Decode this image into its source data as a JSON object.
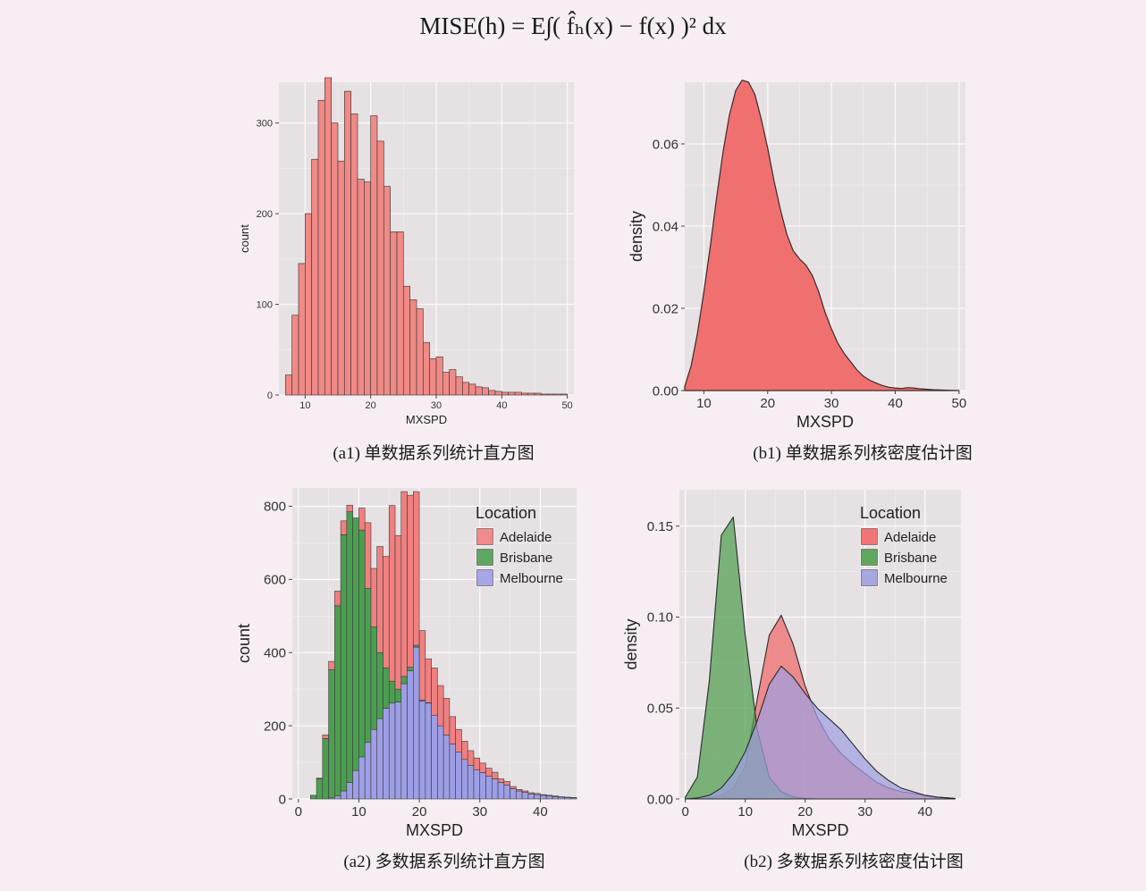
{
  "formula": "MISE(h) = E∫( f̂ₕ(x) − f(x) )² dx",
  "chart_data": [
    {
      "id": "a1",
      "type": "bar",
      "caption": "(a1) 单数据系列统计直方图",
      "xlabel": "MXSPD",
      "ylabel": "count",
      "xlim": [
        6,
        51
      ],
      "ylim": [
        0,
        345
      ],
      "xticks": [
        10,
        20,
        30,
        40,
        50
      ],
      "yticks": [
        0,
        100,
        200,
        300
      ],
      "bin_start": 7,
      "bin_width": 1,
      "colors": {
        "fill": "#f08a86",
        "stroke": "#4a3c3c"
      },
      "values": [
        22,
        88,
        145,
        200,
        260,
        325,
        350,
        300,
        258,
        335,
        310,
        238,
        235,
        308,
        280,
        230,
        180,
        180,
        120,
        105,
        95,
        58,
        40,
        42,
        25,
        28,
        20,
        14,
        12,
        9,
        8,
        5,
        4,
        3,
        3,
        3,
        2,
        2,
        2,
        1,
        1,
        1,
        1
      ]
    },
    {
      "id": "b1",
      "type": "area",
      "caption": "(b1) 单数据系列核密度估计图",
      "xlabel": "MXSPD",
      "ylabel": "density",
      "xlim": [
        7,
        51
      ],
      "ylim": [
        0,
        0.075
      ],
      "xticks": [
        10,
        20,
        30,
        40,
        50
      ],
      "yticks": [
        0,
        0.02,
        0.04,
        0.06
      ],
      "ytick_labels": [
        "0.00",
        "0.02",
        "0.04",
        "0.06"
      ],
      "colors": {
        "fill": "#f07070",
        "stroke": "#3a2a2a"
      },
      "x": [
        7,
        8,
        9,
        10,
        11,
        12,
        13,
        14,
        15,
        16,
        17,
        18,
        19,
        20,
        21,
        22,
        23,
        24,
        25,
        26,
        27,
        28,
        29,
        30,
        31,
        32,
        33,
        34,
        35,
        36,
        37,
        38,
        39,
        40,
        41,
        42,
        43,
        44,
        46,
        48,
        50
      ],
      "y": [
        0.001,
        0.006,
        0.014,
        0.024,
        0.035,
        0.047,
        0.058,
        0.067,
        0.073,
        0.0755,
        0.075,
        0.072,
        0.066,
        0.059,
        0.051,
        0.044,
        0.038,
        0.034,
        0.032,
        0.0305,
        0.028,
        0.024,
        0.019,
        0.015,
        0.0115,
        0.009,
        0.007,
        0.005,
        0.0035,
        0.0025,
        0.0018,
        0.0012,
        0.0008,
        0.0006,
        0.0005,
        0.0007,
        0.0006,
        0.0004,
        0.0002,
        0.0001,
        0.0
      ]
    },
    {
      "id": "a2",
      "type": "bar",
      "stacked": true,
      "caption": "(a2) 多数据系列统计直方图",
      "xlabel": "MXSPD",
      "ylabel": "count",
      "xlim": [
        -1,
        46
      ],
      "ylim": [
        0,
        850
      ],
      "xticks": [
        0,
        10,
        20,
        30,
        40
      ],
      "yticks": [
        0,
        200,
        400,
        600,
        800
      ],
      "bin_start": 2,
      "bin_width": 1,
      "legend": {
        "title": "Location",
        "position": "top-right"
      },
      "series": [
        {
          "name": "Melbourne",
          "color": "#9d9ee6",
          "values": [
            0,
            0,
            0,
            3,
            8,
            22,
            45,
            78,
            115,
            155,
            190,
            220,
            248,
            262,
            265,
            315,
            350,
            415,
            268,
            262,
            228,
            200,
            175,
            150,
            128,
            108,
            92,
            80,
            72,
            62,
            55,
            45,
            38,
            28,
            22,
            18,
            14,
            12,
            10,
            8,
            6,
            5,
            4,
            3
          ]
        },
        {
          "name": "Brisbane",
          "color": "#4d9e52",
          "values": [
            10,
            55,
            165,
            350,
            520,
            700,
            740,
            690,
            620,
            420,
            280,
            180,
            110,
            60,
            35,
            20,
            10,
            5,
            2,
            1,
            0,
            0,
            0,
            0,
            0,
            0,
            0,
            0,
            0,
            0,
            0,
            0,
            0,
            0,
            0,
            0,
            0,
            0,
            0,
            0,
            0,
            0,
            0,
            0
          ]
        },
        {
          "name": "Adelaide",
          "color": "#f08080",
          "values": [
            0,
            2,
            10,
            23,
            40,
            38,
            18,
            0,
            60,
            180,
            160,
            290,
            305,
            480,
            420,
            505,
            470,
            420,
            190,
            120,
            130,
            110,
            100,
            75,
            62,
            50,
            40,
            32,
            26,
            22,
            18,
            10,
            10,
            6,
            4,
            4,
            3,
            3,
            2,
            2,
            2,
            1,
            1,
            1
          ]
        }
      ]
    },
    {
      "id": "b2",
      "type": "area",
      "caption": "(b2) 多数据系列核密度估计图",
      "xlabel": "MXSPD",
      "ylabel": "density",
      "xlim": [
        -1,
        46
      ],
      "ylim": [
        0,
        0.17
      ],
      "xticks": [
        0,
        10,
        20,
        30,
        40
      ],
      "yticks": [
        0,
        0.05,
        0.1,
        0.15
      ],
      "ytick_labels": [
        "0.00",
        "0.05",
        "0.10",
        "0.15"
      ],
      "legend": {
        "title": "Location",
        "position": "top-right"
      },
      "x": [
        0,
        2,
        4,
        6,
        8,
        10,
        12,
        14,
        16,
        18,
        20,
        22,
        24,
        26,
        28,
        30,
        32,
        34,
        36,
        38,
        40,
        42,
        44,
        45
      ],
      "series": [
        {
          "name": "Adelaide",
          "color": "#f06868",
          "values": [
            0,
            0,
            0.0005,
            0.002,
            0.006,
            0.018,
            0.055,
            0.09,
            0.101,
            0.085,
            0.062,
            0.045,
            0.033,
            0.025,
            0.019,
            0.014,
            0.009,
            0.006,
            0.004,
            0.003,
            0.002,
            0.001,
            0.0005,
            0.0003
          ]
        },
        {
          "name": "Brisbane",
          "color": "#4f9e4f",
          "values": [
            0.001,
            0.012,
            0.065,
            0.145,
            0.155,
            0.09,
            0.038,
            0.012,
            0.004,
            0.001,
            0.0003,
            0,
            0,
            0,
            0,
            0,
            0,
            0,
            0,
            0,
            0,
            0,
            0,
            0
          ]
        },
        {
          "name": "Melbourne",
          "color": "#9f9fe0",
          "values": [
            0,
            0.0005,
            0.002,
            0.006,
            0.014,
            0.026,
            0.043,
            0.063,
            0.073,
            0.067,
            0.058,
            0.05,
            0.044,
            0.038,
            0.03,
            0.022,
            0.015,
            0.01,
            0.006,
            0.004,
            0.002,
            0.001,
            0.0005,
            0.0002
          ]
        }
      ]
    }
  ]
}
